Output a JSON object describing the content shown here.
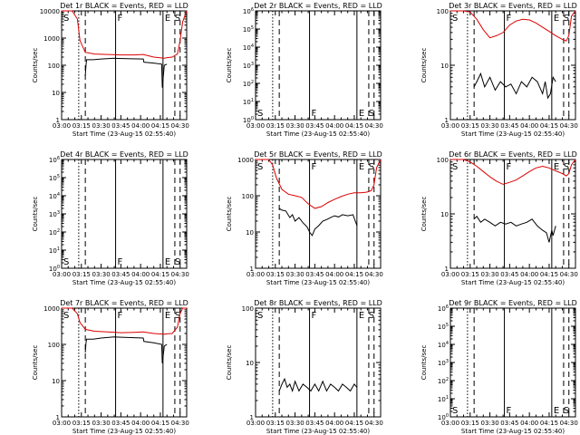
{
  "figure": {
    "xlabel": "Start Time (23-Aug-15 02:55:40)",
    "ylabel": "Counts/sec",
    "x_ticks": [
      "03:00",
      "03:15",
      "03:30",
      "03:45",
      "04:00",
      "04:15",
      "04:30"
    ],
    "x_tick_minutes": [
      0,
      15,
      30,
      45,
      60,
      75,
      90
    ],
    "colors": {
      "events": "#000000",
      "lld": "#dd0000",
      "axes": "#000000"
    },
    "marker_labels": {
      "S": "S",
      "F": "F",
      "E": "E"
    },
    "markers": {
      "dotted": 13,
      "dashed1": 18,
      "solid_F": 41,
      "solid_E": 77,
      "dashed2": 86,
      "dashed3": 90
    }
  },
  "chart_data": [
    {
      "type": "line",
      "title": "Det 1r BLACK = Events, RED = LLD",
      "xlim": [
        0,
        95
      ],
      "ylim": [
        1,
        10000
      ],
      "yscale": "log",
      "y_ticks": [
        "1",
        "10",
        "100",
        "1000",
        "10000"
      ],
      "marks": [
        "S",
        "F",
        "E",
        "S"
      ],
      "series": [
        {
          "x": [
            0,
            8,
            12,
            14,
            18,
            25,
            35,
            45,
            55,
            62,
            70,
            78,
            80,
            84,
            88,
            90,
            92,
            95
          ],
          "y": [
            10000,
            10000,
            5000,
            800,
            300,
            260,
            250,
            240,
            240,
            250,
            200,
            180,
            190,
            200,
            260,
            800,
            4000,
            10000
          ],
          "color": "#dd0000"
        },
        {
          "x": [
            18,
            18.5,
            19,
            24,
            30,
            40,
            50,
            62,
            62.5,
            70,
            76,
            76.5,
            78,
            80
          ],
          "y": [
            40,
            100,
            160,
            160,
            170,
            180,
            175,
            170,
            130,
            120,
            110,
            15,
            100,
            110
          ],
          "color": "#000000"
        }
      ]
    },
    {
      "type": "line",
      "title": "Det 2r BLACK = Events, RED = LLD",
      "xlim": [
        0,
        95
      ],
      "ylim": [
        1,
        1000000
      ],
      "yscale": "log",
      "y_ticks": [
        "10^0",
        "10^1",
        "10^2",
        "10^3",
        "10^4",
        "10^5",
        "10^6"
      ],
      "marks": [
        "S",
        "F",
        "E",
        "S"
      ],
      "series": []
    },
    {
      "type": "line",
      "title": "Det 3r BLACK = Events, RED = LLD",
      "xlim": [
        0,
        95
      ],
      "ylim": [
        1,
        100
      ],
      "yscale": "log",
      "y_ticks": [
        "1",
        "10",
        "100"
      ],
      "marks": [
        "S",
        "F",
        "E",
        "S"
      ],
      "series": [
        {
          "x": [
            0,
            5,
            10,
            15,
            20,
            25,
            30,
            35,
            40,
            45,
            50,
            55,
            60,
            65,
            70,
            75,
            80,
            85,
            88,
            90,
            92,
            95
          ],
          "y": [
            100,
            100,
            100,
            95,
            70,
            45,
            32,
            35,
            40,
            55,
            65,
            70,
            68,
            60,
            50,
            42,
            35,
            30,
            28,
            35,
            80,
            100
          ],
          "color": "#dd0000"
        },
        {
          "x": [
            18,
            20,
            23,
            26,
            30,
            34,
            38,
            42,
            46,
            50,
            54,
            58,
            62,
            66,
            70,
            72,
            74,
            76,
            78,
            80
          ],
          "y": [
            4,
            5,
            7,
            4,
            6,
            3.5,
            5,
            4,
            4.5,
            3,
            5,
            4,
            6,
            5,
            3,
            5,
            2.5,
            3,
            6,
            5
          ],
          "color": "#000000"
        }
      ]
    },
    {
      "type": "line",
      "title": "Det 4r BLACK = Events, RED = LLD",
      "xlim": [
        0,
        95
      ],
      "ylim": [
        1,
        1000000
      ],
      "yscale": "log",
      "y_ticks": [
        "10^0",
        "10^1",
        "10^2",
        "10^3",
        "10^4",
        "10^5",
        "10^6"
      ],
      "marks": [
        "S",
        "F",
        "E",
        "S"
      ],
      "series": []
    },
    {
      "type": "line",
      "title": "Det 5r BLACK = Events, RED = LLD",
      "xlim": [
        0,
        95
      ],
      "ylim": [
        1,
        1000
      ],
      "yscale": "log",
      "y_ticks": [
        "1",
        "10",
        "100",
        "1000"
      ],
      "marks": [
        "S",
        "F",
        "E",
        "S"
      ],
      "series": [
        {
          "x": [
            0,
            5,
            10,
            13,
            16,
            20,
            25,
            30,
            35,
            40,
            45,
            50,
            55,
            60,
            65,
            70,
            75,
            80,
            84,
            86,
            88,
            90,
            92,
            95
          ],
          "y": [
            1000,
            1000,
            1000,
            700,
            300,
            150,
            110,
            100,
            90,
            60,
            45,
            50,
            65,
            80,
            95,
            110,
            120,
            120,
            125,
            130,
            140,
            200,
            600,
            1000
          ],
          "color": "#dd0000"
        },
        {
          "x": [
            18,
            20,
            23,
            26,
            28,
            30,
            33,
            36,
            39,
            41,
            43,
            45,
            48,
            51,
            54,
            57,
            60,
            63,
            66,
            70,
            74,
            77
          ],
          "y": [
            45,
            40,
            38,
            25,
            30,
            20,
            25,
            18,
            14,
            10,
            8,
            12,
            15,
            20,
            22,
            25,
            28,
            26,
            30,
            28,
            30,
            15
          ],
          "color": "#000000"
        }
      ]
    },
    {
      "type": "line",
      "title": "Det 6r BLACK = Events, RED = LLD",
      "xlim": [
        0,
        95
      ],
      "ylim": [
        1,
        100
      ],
      "yscale": "log",
      "y_ticks": [
        "1",
        "10",
        "100"
      ],
      "marks": [
        "S",
        "F",
        "E",
        "S"
      ],
      "series": [
        {
          "x": [
            0,
            5,
            10,
            15,
            20,
            25,
            30,
            35,
            40,
            45,
            50,
            55,
            60,
            65,
            70,
            75,
            80,
            85,
            88,
            90,
            92,
            95
          ],
          "y": [
            100,
            100,
            100,
            90,
            75,
            60,
            48,
            40,
            35,
            38,
            42,
            50,
            60,
            70,
            75,
            70,
            62,
            55,
            50,
            55,
            80,
            100
          ],
          "color": "#dd0000"
        },
        {
          "x": [
            18,
            20,
            23,
            26,
            30,
            34,
            38,
            42,
            46,
            50,
            54,
            58,
            62,
            66,
            70,
            73,
            75,
            77,
            78,
            80
          ],
          "y": [
            8,
            9,
            7,
            8,
            7,
            6,
            7,
            6.5,
            7,
            6,
            6.5,
            7,
            8,
            6,
            5,
            4.5,
            3,
            5,
            4,
            6
          ],
          "color": "#000000"
        }
      ]
    },
    {
      "type": "line",
      "title": "Det 7r BLACK = Events, RED = LLD",
      "xlim": [
        0,
        95
      ],
      "ylim": [
        1,
        1000
      ],
      "yscale": "log",
      "y_ticks": [
        "1",
        "10",
        "100",
        "1000"
      ],
      "marks": [
        "S",
        "F",
        "E",
        "S"
      ],
      "series": [
        {
          "x": [
            0,
            8,
            12,
            14,
            18,
            25,
            35,
            45,
            55,
            62,
            70,
            78,
            80,
            84,
            88,
            90,
            92,
            95
          ],
          "y": [
            1000,
            1000,
            700,
            400,
            260,
            230,
            220,
            210,
            215,
            220,
            200,
            190,
            195,
            200,
            300,
            700,
            1000,
            1000
          ],
          "color": "#dd0000"
        },
        {
          "x": [
            18,
            18.5,
            19,
            24,
            30,
            40,
            50,
            62,
            62.5,
            70,
            76,
            76.5,
            78,
            80
          ],
          "y": [
            60,
            110,
            140,
            140,
            150,
            160,
            155,
            150,
            120,
            110,
            100,
            30,
            90,
            100
          ],
          "color": "#000000"
        }
      ]
    },
    {
      "type": "line",
      "title": "Det 8r BLACK = Events, RED = LLD",
      "xlim": [
        0,
        95
      ],
      "ylim": [
        1,
        100
      ],
      "yscale": "log",
      "y_ticks": [
        "1",
        "10",
        "100"
      ],
      "marks": [
        "S",
        "F",
        "E",
        "S"
      ],
      "series": [
        {
          "x": [
            18,
            20,
            22,
            24,
            26,
            28,
            30,
            33,
            36,
            39,
            42,
            45,
            48,
            51,
            54,
            57,
            60,
            63,
            66,
            69,
            72,
            75,
            77
          ],
          "y": [
            3,
            4,
            5,
            3.5,
            4,
            3,
            4.5,
            3,
            4,
            3.5,
            3,
            4,
            3,
            4.5,
            3,
            4,
            3.5,
            3,
            4,
            3.5,
            3,
            4,
            3.5
          ],
          "color": "#000000"
        }
      ]
    },
    {
      "type": "line",
      "title": "Det 9r BLACK = Events, RED = LLD",
      "xlim": [
        0,
        95
      ],
      "ylim": [
        1,
        1000000
      ],
      "yscale": "log",
      "y_ticks": [
        "10^0",
        "10^1",
        "10^2",
        "10^3",
        "10^4",
        "10^5",
        "10^6"
      ],
      "marks": [
        "S",
        "F",
        "E",
        "S"
      ],
      "series": []
    }
  ]
}
